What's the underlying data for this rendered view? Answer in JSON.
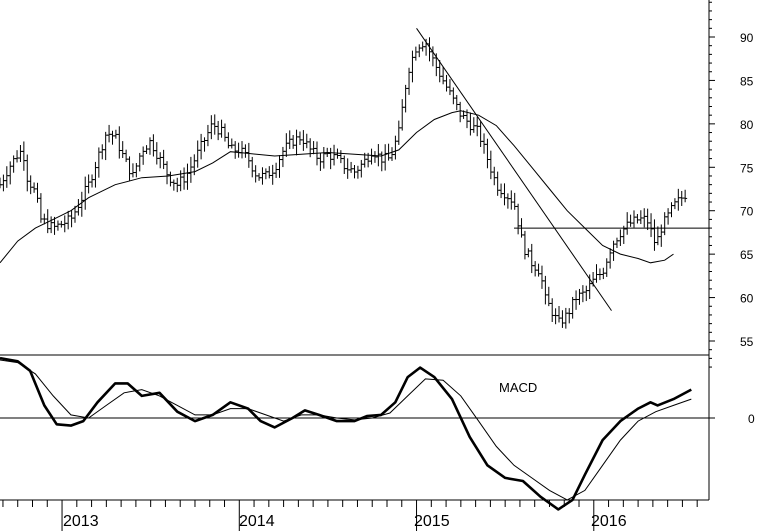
{
  "chart_data": [
    {
      "type": "ohlc-bar",
      "panel": "price",
      "x_ticks": [
        "2013",
        "2014",
        "2015",
        "2016"
      ],
      "y_ticks": [
        55,
        60,
        65,
        70,
        75,
        80,
        85,
        90
      ],
      "ylim": [
        52,
        95
      ],
      "x_range": [
        2012.65,
        2016.65
      ],
      "grid": false,
      "series": [
        {
          "kind": "price-path",
          "points": [
            [
              2012.65,
              73
            ],
            [
              2012.7,
              75
            ],
            [
              2012.75,
              76.5
            ],
            [
              2012.78,
              77
            ],
            [
              2012.8,
              74
            ],
            [
              2012.85,
              72
            ],
            [
              2012.88,
              69
            ],
            [
              2012.95,
              68
            ],
            [
              2013.0,
              68.5
            ],
            [
              2013.05,
              69
            ],
            [
              2013.1,
              71
            ],
            [
              2013.15,
              73
            ],
            [
              2013.2,
              76
            ],
            [
              2013.25,
              79
            ],
            [
              2013.3,
              78.5
            ],
            [
              2013.35,
              76
            ],
            [
              2013.4,
              74
            ],
            [
              2013.45,
              77
            ],
            [
              2013.5,
              78
            ],
            [
              2013.55,
              76
            ],
            [
              2013.6,
              74
            ],
            [
              2013.65,
              73
            ],
            [
              2013.7,
              74
            ],
            [
              2013.75,
              76
            ],
            [
              2013.8,
              78
            ],
            [
              2013.85,
              80
            ],
            [
              2013.9,
              79
            ],
            [
              2013.95,
              77
            ],
            [
              2014.0,
              77
            ],
            [
              2014.05,
              76
            ],
            [
              2014.1,
              74
            ],
            [
              2014.15,
              74
            ],
            [
              2014.2,
              75
            ],
            [
              2014.25,
              77
            ],
            [
              2014.3,
              78
            ],
            [
              2014.35,
              78.5
            ],
            [
              2014.4,
              77
            ],
            [
              2014.45,
              76
            ],
            [
              2014.5,
              76.5
            ],
            [
              2014.55,
              76
            ],
            [
              2014.6,
              75
            ],
            [
              2014.65,
              74.5
            ],
            [
              2014.7,
              75.5
            ],
            [
              2014.75,
              77
            ],
            [
              2014.8,
              76
            ],
            [
              2014.85,
              76
            ],
            [
              2014.9,
              79
            ],
            [
              2014.95,
              86
            ],
            [
              2015.0,
              89
            ],
            [
              2015.05,
              89.5
            ],
            [
              2015.1,
              87
            ],
            [
              2015.15,
              85
            ],
            [
              2015.2,
              83
            ],
            [
              2015.25,
              81
            ],
            [
              2015.3,
              80
            ],
            [
              2015.35,
              79
            ],
            [
              2015.4,
              76
            ],
            [
              2015.45,
              73
            ],
            [
              2015.5,
              72
            ],
            [
              2015.55,
              71
            ],
            [
              2015.6,
              66
            ],
            [
              2015.65,
              64
            ],
            [
              2015.7,
              63
            ],
            [
              2015.72,
              60
            ],
            [
              2015.75,
              59
            ],
            [
              2015.8,
              57
            ],
            [
              2015.85,
              58
            ],
            [
              2015.9,
              60
            ],
            [
              2015.95,
              60.5
            ],
            [
              2016.0,
              62
            ],
            [
              2016.05,
              63
            ],
            [
              2016.1,
              66
            ],
            [
              2016.15,
              67.5
            ],
            [
              2016.2,
              68.5
            ],
            [
              2016.25,
              69
            ],
            [
              2016.3,
              69
            ],
            [
              2016.35,
              66
            ],
            [
              2016.38,
              68
            ],
            [
              2016.45,
              70.5
            ],
            [
              2016.52,
              72
            ]
          ]
        },
        {
          "kind": "moving-average",
          "points": [
            [
              2012.65,
              64
            ],
            [
              2012.75,
              66.5
            ],
            [
              2012.85,
              68
            ],
            [
              2012.95,
              69
            ],
            [
              2013.05,
              70
            ],
            [
              2013.15,
              71.5
            ],
            [
              2013.3,
              73
            ],
            [
              2013.45,
              73.8
            ],
            [
              2013.6,
              74
            ],
            [
              2013.75,
              74.5
            ],
            [
              2013.85,
              75.5
            ],
            [
              2013.95,
              76.8
            ],
            [
              2014.05,
              76.6
            ],
            [
              2014.2,
              76.3
            ],
            [
              2014.35,
              76.5
            ],
            [
              2014.5,
              76.7
            ],
            [
              2014.65,
              76.5
            ],
            [
              2014.8,
              76.3
            ],
            [
              2014.9,
              77
            ],
            [
              2015.0,
              79
            ],
            [
              2015.1,
              80.5
            ],
            [
              2015.2,
              81.3
            ],
            [
              2015.25,
              81.5
            ],
            [
              2015.35,
              81
            ],
            [
              2015.45,
              79.8
            ],
            [
              2015.55,
              77.5
            ],
            [
              2015.65,
              75
            ],
            [
              2015.75,
              72.5
            ],
            [
              2015.85,
              70
            ],
            [
              2015.95,
              68
            ],
            [
              2016.05,
              66
            ],
            [
              2016.15,
              65
            ],
            [
              2016.25,
              64.5
            ],
            [
              2016.32,
              64
            ],
            [
              2016.4,
              64.3
            ],
            [
              2016.45,
              65
            ]
          ]
        },
        {
          "kind": "trendline",
          "points": [
            [
              2015.0,
              91
            ],
            [
              2016.1,
              58.5
            ]
          ]
        },
        {
          "kind": "horizontal-line",
          "y": 68,
          "x_start": 2015.55
        }
      ]
    },
    {
      "type": "line",
      "panel": "indicator",
      "label": "MACD",
      "y_ticks": [
        0
      ],
      "ylim": [
        -1.6,
        1.3
      ],
      "grid": false,
      "series": [
        {
          "kind": "macd",
          "points": [
            [
              2012.65,
              0.95
            ],
            [
              2012.75,
              0.9
            ],
            [
              2012.82,
              0.75
            ],
            [
              2012.9,
              0.2
            ],
            [
              2012.97,
              -0.1
            ],
            [
              2013.05,
              -0.12
            ],
            [
              2013.12,
              -0.05
            ],
            [
              2013.2,
              0.25
            ],
            [
              2013.3,
              0.55
            ],
            [
              2013.37,
              0.55
            ],
            [
              2013.45,
              0.35
            ],
            [
              2013.55,
              0.4
            ],
            [
              2013.65,
              0.1
            ],
            [
              2013.75,
              -0.05
            ],
            [
              2013.85,
              0.05
            ],
            [
              2013.95,
              0.25
            ],
            [
              2014.05,
              0.15
            ],
            [
              2014.12,
              -0.05
            ],
            [
              2014.2,
              -0.15
            ],
            [
              2014.3,
              0.0
            ],
            [
              2014.37,
              0.12
            ],
            [
              2014.45,
              0.05
            ],
            [
              2014.55,
              -0.05
            ],
            [
              2014.65,
              -0.05
            ],
            [
              2014.72,
              0.03
            ],
            [
              2014.8,
              0.05
            ],
            [
              2014.88,
              0.25
            ],
            [
              2014.95,
              0.65
            ],
            [
              2015.02,
              0.8
            ],
            [
              2015.1,
              0.65
            ],
            [
              2015.2,
              0.3
            ],
            [
              2015.3,
              -0.3
            ],
            [
              2015.4,
              -0.75
            ],
            [
              2015.5,
              -0.95
            ],
            [
              2015.6,
              -1.0
            ],
            [
              2015.7,
              -1.25
            ],
            [
              2015.8,
              -1.45
            ],
            [
              2015.88,
              -1.3
            ],
            [
              2015.95,
              -0.9
            ],
            [
              2016.05,
              -0.35
            ],
            [
              2016.15,
              -0.05
            ],
            [
              2016.25,
              0.15
            ],
            [
              2016.32,
              0.25
            ],
            [
              2016.36,
              0.2
            ],
            [
              2016.45,
              0.3
            ],
            [
              2016.55,
              0.45
            ]
          ]
        },
        {
          "kind": "signal",
          "points": [
            [
              2012.65,
              0.92
            ],
            [
              2012.75,
              0.88
            ],
            [
              2012.85,
              0.7
            ],
            [
              2012.95,
              0.35
            ],
            [
              2013.05,
              0.05
            ],
            [
              2013.15,
              0.0
            ],
            [
              2013.25,
              0.2
            ],
            [
              2013.35,
              0.4
            ],
            [
              2013.45,
              0.45
            ],
            [
              2013.55,
              0.35
            ],
            [
              2013.65,
              0.2
            ],
            [
              2013.75,
              0.05
            ],
            [
              2013.85,
              0.05
            ],
            [
              2013.95,
              0.15
            ],
            [
              2014.05,
              0.15
            ],
            [
              2014.15,
              0.05
            ],
            [
              2014.25,
              -0.05
            ],
            [
              2014.35,
              0.05
            ],
            [
              2014.45,
              0.05
            ],
            [
              2014.55,
              0.0
            ],
            [
              2014.65,
              -0.03
            ],
            [
              2014.75,
              0.0
            ],
            [
              2014.85,
              0.08
            ],
            [
              2014.95,
              0.35
            ],
            [
              2015.05,
              0.62
            ],
            [
              2015.15,
              0.6
            ],
            [
              2015.25,
              0.35
            ],
            [
              2015.35,
              -0.05
            ],
            [
              2015.45,
              -0.45
            ],
            [
              2015.55,
              -0.75
            ],
            [
              2015.65,
              -0.95
            ],
            [
              2015.75,
              -1.15
            ],
            [
              2015.85,
              -1.3
            ],
            [
              2015.95,
              -1.15
            ],
            [
              2016.05,
              -0.75
            ],
            [
              2016.15,
              -0.35
            ],
            [
              2016.25,
              -0.05
            ],
            [
              2016.35,
              0.1
            ],
            [
              2016.45,
              0.2
            ],
            [
              2016.55,
              0.3
            ]
          ]
        }
      ]
    }
  ]
}
